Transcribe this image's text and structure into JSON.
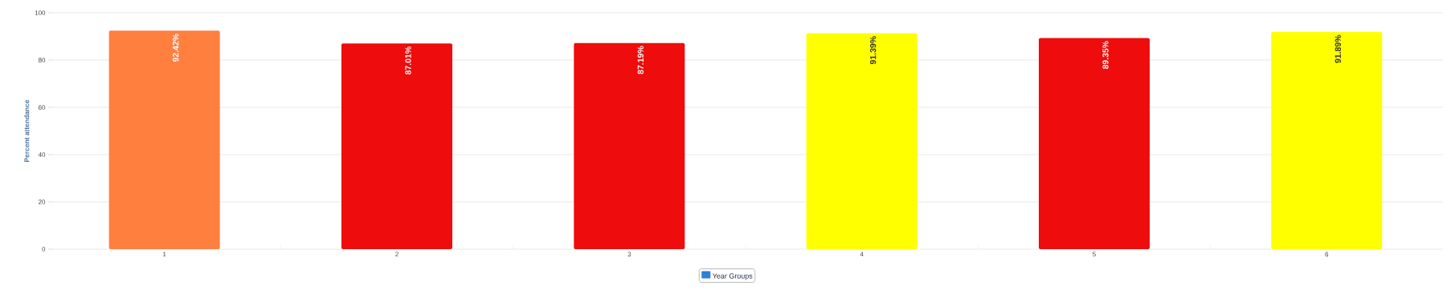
{
  "chart_data": {
    "type": "bar",
    "ylabel": "Percent attendance",
    "categories": [
      "1",
      "2",
      "3",
      "4",
      "5",
      "6"
    ],
    "series": [
      {
        "name": "Year Groups",
        "color": "#2f7ed8",
        "colors": [
          "#ff7f3f",
          "#ee0c0c",
          "#ee0c0c",
          "#ffff00",
          "#ee0c0c",
          "#ffff00"
        ],
        "values": [
          92.42,
          87.01,
          87.19,
          91.39,
          89.35,
          91.89
        ],
        "value_labels": [
          "92.42%",
          "87.01%",
          "87.19%",
          "91.39%",
          "89.35%",
          "91.89%"
        ]
      }
    ],
    "ylim": [
      0,
      100
    ],
    "yticks": [
      0,
      20,
      40,
      60,
      80,
      100
    ],
    "grid": "y",
    "legend": "bottom"
  }
}
